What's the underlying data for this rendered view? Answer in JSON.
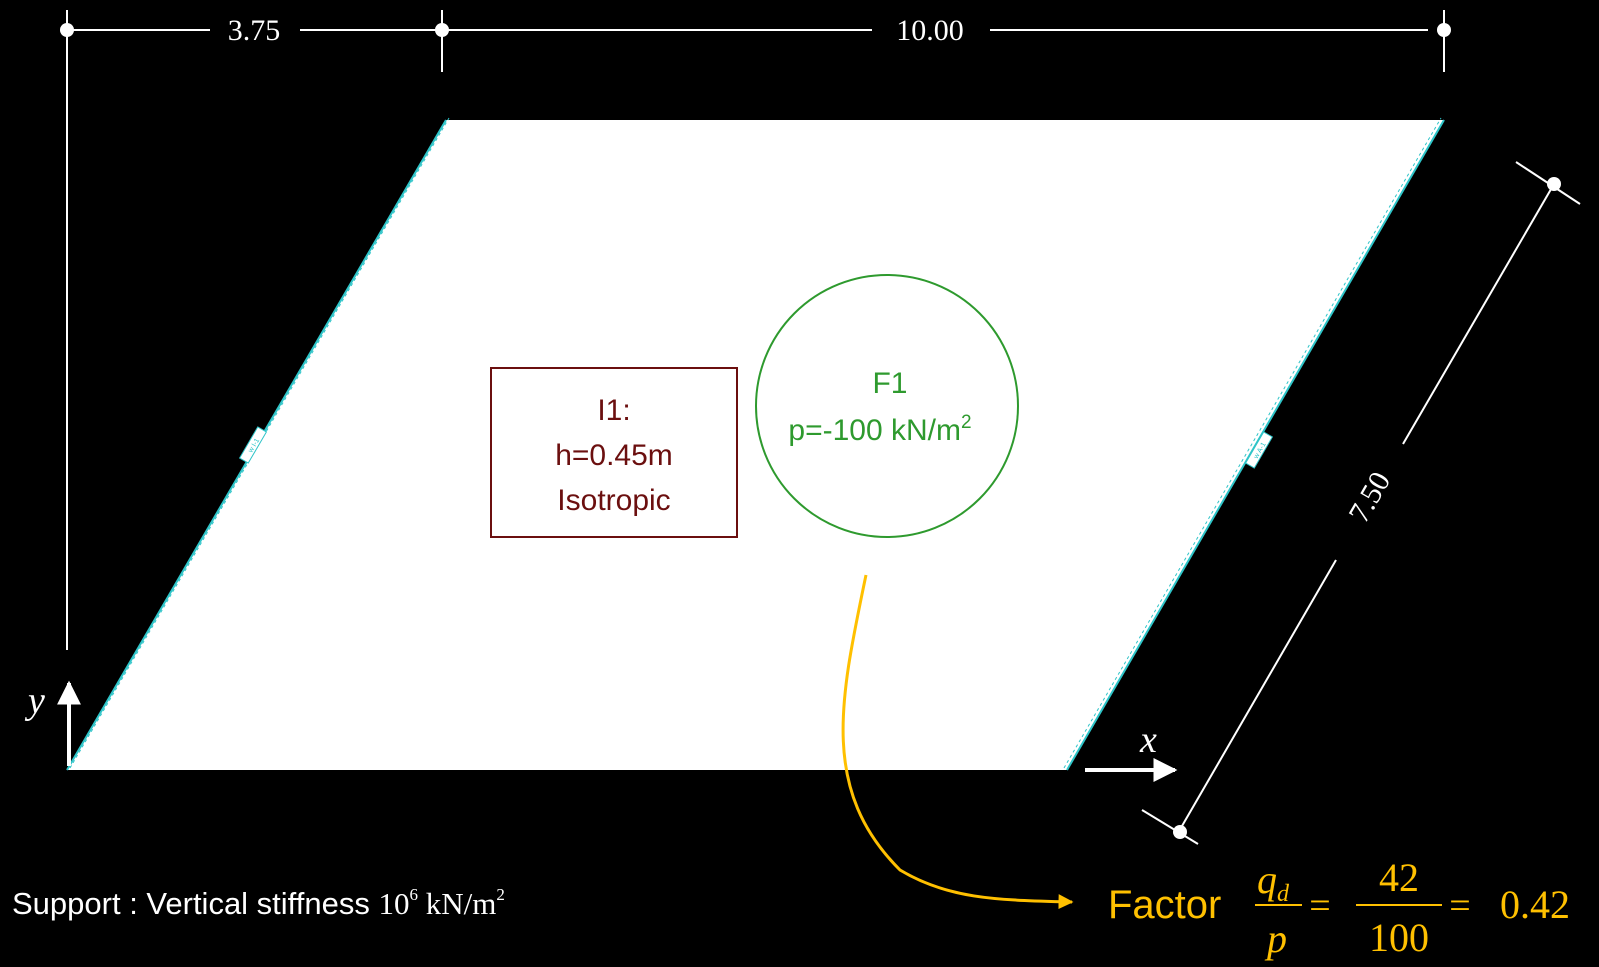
{
  "dimensions": {
    "offset": "3.75",
    "width": "10.00",
    "side": "7.50"
  },
  "axes": {
    "x": "x",
    "y": "y"
  },
  "edge_tags": {
    "left": "w I-1",
    "right": "w A-1"
  },
  "material": {
    "id": "I1:",
    "thickness": "h=0.45m",
    "type": "Isotropic"
  },
  "load": {
    "id": "F1",
    "value_text": "p=-100 kN/m",
    "value_sup": "2"
  },
  "support": {
    "label": "Support : Vertical stiffness ",
    "base": "10",
    "exponent": "6",
    "unit": " kN/m",
    "unit_exp": "2"
  },
  "factor": {
    "word": "Factor",
    "numerator_sym": "q",
    "numerator_sub": "d",
    "denominator_sym": "p",
    "eq1": "=",
    "frac_num": "42",
    "frac_den": "100",
    "eq2": "=",
    "result": "0.42"
  },
  "colors": {
    "background": "#000000",
    "plate": "#ffffff",
    "edge": "#2ec4c8",
    "material": "#6b0f0f",
    "load": "#2e9a2e",
    "factor": "#ffc000",
    "dimension": "#ffffff"
  }
}
